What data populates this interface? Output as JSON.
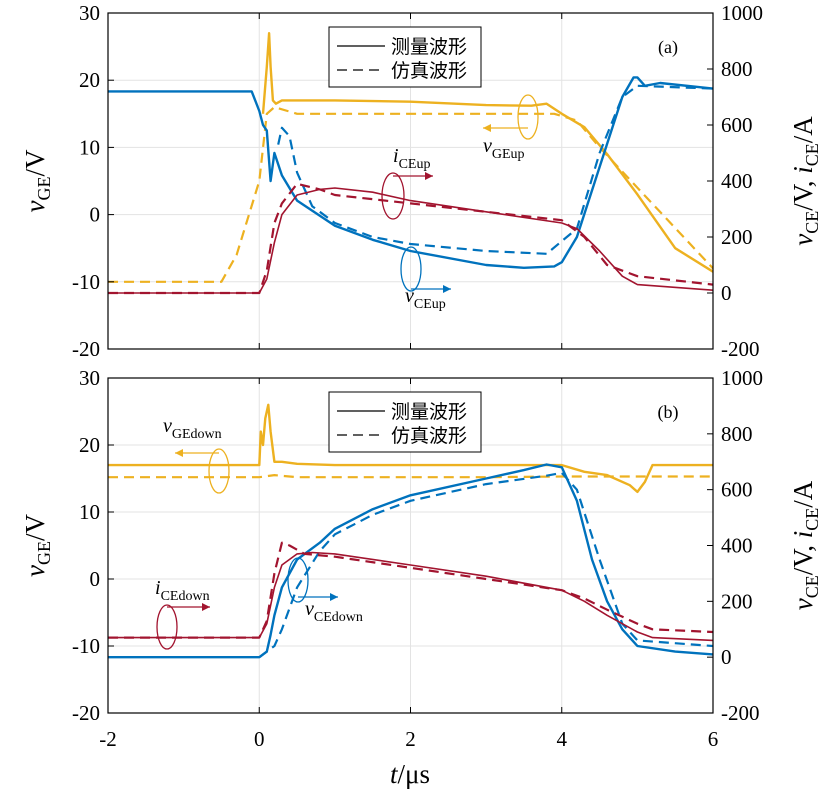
{
  "chart_data": [
    {
      "type": "line",
      "panel_label": "(a)",
      "xlim": [
        -2,
        6
      ],
      "ylim_left": [
        -20,
        30
      ],
      "ylim_right": [
        -200,
        1000
      ],
      "grid": true,
      "legend_position": "top-center",
      "legend": [
        {
          "label": "测量波形",
          "style": "solid"
        },
        {
          "label": "仿真波形",
          "style": "dashed"
        }
      ],
      "series": [
        {
          "name": "vGEup",
          "axis": "left",
          "color": "#EDB120",
          "style": "solid",
          "x": [
            -2,
            0,
            0.05,
            0.1,
            0.13,
            0.15,
            0.18,
            0.22,
            0.3,
            0.5,
            1,
            2,
            3,
            3.6,
            3.8,
            4,
            4.3,
            4.6,
            5,
            5.5,
            6
          ],
          "y": [
            null,
            null,
            15,
            22,
            27,
            22,
            17,
            16.5,
            17,
            17,
            17,
            16.8,
            16.3,
            16.2,
            16.5,
            15,
            13,
            9,
            3,
            -5,
            -8.5
          ]
        },
        {
          "name": "vGEup",
          "axis": "left",
          "color": "#EDB120",
          "style": "dashed",
          "x": [
            -2,
            -0.5,
            -0.3,
            0,
            0.1,
            0.2,
            0.5,
            1,
            2,
            3,
            3.9,
            4.2,
            4.5,
            5,
            5.5,
            6
          ],
          "y": [
            -10,
            -10,
            -6,
            5,
            15,
            16,
            15,
            15,
            15,
            15,
            15,
            14,
            10,
            4,
            -2,
            -8
          ]
        },
        {
          "name": "vCEup",
          "axis": "right",
          "color": "#0072BD",
          "style": "solid",
          "x": [
            -2,
            -0.1,
            0,
            0.05,
            0.1,
            0.15,
            0.2,
            0.3,
            0.5,
            1,
            1.5,
            2,
            3,
            3.5,
            3.9,
            4,
            4.2,
            4.5,
            4.8,
            4.95,
            5,
            5.1,
            5.3,
            6
          ],
          "y": [
            720,
            720,
            650,
            600,
            580,
            400,
            500,
            420,
            330,
            240,
            190,
            150,
            100,
            90,
            95,
            110,
            200,
            450,
            700,
            770,
            770,
            740,
            750,
            730
          ]
        },
        {
          "name": "vCEup",
          "axis": "right",
          "color": "#0072BD",
          "style": "dashed",
          "x": [
            0.25,
            0.3,
            0.4,
            0.5,
            0.7,
            1,
            1.5,
            2,
            3,
            3.8,
            4.2,
            4.5,
            4.8,
            5,
            6
          ],
          "y": [
            530,
            590,
            560,
            430,
            310,
            250,
            200,
            175,
            150,
            140,
            230,
            500,
            700,
            740,
            730
          ]
        },
        {
          "name": "iCEup",
          "axis": "right",
          "color": "#A2142F",
          "style": "solid",
          "x": [
            -2,
            0,
            0.1,
            0.2,
            0.3,
            0.5,
            0.8,
            1,
            1.5,
            2,
            3,
            4,
            4.2,
            4.5,
            4.8,
            5,
            6
          ],
          "y": [
            0,
            0,
            50,
            180,
            280,
            350,
            370,
            375,
            360,
            330,
            290,
            250,
            230,
            150,
            60,
            30,
            10
          ]
        },
        {
          "name": "iCEup",
          "axis": "right",
          "color": "#A2142F",
          "style": "dashed",
          "x": [
            -2,
            0,
            0.1,
            0.2,
            0.3,
            0.5,
            0.8,
            1,
            2,
            3,
            4,
            4.3,
            4.6,
            5,
            6
          ],
          "y": [
            0,
            0,
            80,
            250,
            320,
            390,
            370,
            350,
            320,
            290,
            260,
            200,
            100,
            60,
            30
          ]
        }
      ],
      "annotations": [
        {
          "text": "v",
          "sub": "GEup",
          "color": "#EDB120"
        },
        {
          "text": "i",
          "sub": "CEup",
          "color": "#A2142F"
        },
        {
          "text": "v",
          "sub": "CEup",
          "color": "#0072BD"
        }
      ],
      "ylabel_left": "v_GE/V",
      "ylabel_right": "v_CE/V, i_CE/A"
    },
    {
      "type": "line",
      "panel_label": "(b)",
      "xlim": [
        -2,
        6
      ],
      "ylim_left": [
        -20,
        30
      ],
      "ylim_right": [
        -200,
        1000
      ],
      "grid": true,
      "legend_position": "top-center",
      "legend": [
        {
          "label": "测量波形",
          "style": "solid"
        },
        {
          "label": "仿真波形",
          "style": "dashed"
        }
      ],
      "series": [
        {
          "name": "vGEdown",
          "axis": "left",
          "color": "#EDB120",
          "style": "solid",
          "x": [
            -2,
            0,
            0.02,
            0.05,
            0.08,
            0.12,
            0.15,
            0.2,
            0.3,
            0.5,
            1,
            3,
            4,
            4.3,
            4.6,
            4.9,
            5,
            5.1,
            5.2,
            5.4,
            6
          ],
          "y": [
            17,
            17,
            22,
            20,
            24,
            26,
            22,
            17.5,
            17.5,
            17.2,
            17,
            17,
            17,
            16,
            15.5,
            14,
            13,
            14.5,
            17,
            17,
            17
          ]
        },
        {
          "name": "vGEdown",
          "axis": "left",
          "color": "#EDB120",
          "style": "dashed",
          "x": [
            -2,
            0,
            0.2,
            0.5,
            1,
            3,
            4,
            6
          ],
          "y": [
            15.2,
            15.2,
            15.5,
            15.2,
            15.2,
            15.2,
            15.3,
            15.3
          ]
        },
        {
          "name": "vCEdown",
          "axis": "right",
          "color": "#0072BD",
          "style": "solid",
          "x": [
            -2,
            0,
            0.1,
            0.15,
            0.2,
            0.3,
            0.5,
            0.8,
            1,
            1.5,
            2,
            3,
            3.5,
            3.8,
            4,
            4.2,
            4.4,
            4.6,
            4.8,
            5,
            5.5,
            6
          ],
          "y": [
            0,
            0,
            20,
            80,
            150,
            250,
            350,
            410,
            460,
            530,
            580,
            640,
            670,
            690,
            680,
            560,
            350,
            200,
            100,
            40,
            20,
            10
          ]
        },
        {
          "name": "vCEdown",
          "axis": "right",
          "color": "#0072BD",
          "style": "dashed",
          "x": [
            0,
            0.2,
            0.3,
            0.5,
            0.8,
            1,
            1.5,
            2,
            3,
            3.8,
            4,
            4.2,
            4.5,
            4.8,
            5,
            6
          ],
          "y": [
            0,
            40,
            100,
            250,
            380,
            440,
            510,
            560,
            620,
            650,
            660,
            600,
            350,
            120,
            60,
            40
          ]
        },
        {
          "name": "iCEdown",
          "axis": "right",
          "color": "#A2142F",
          "style": "solid",
          "x": [
            -2,
            0,
            0.1,
            0.2,
            0.3,
            0.5,
            0.7,
            1,
            2,
            3,
            4,
            4.3,
            4.6,
            5,
            5.2,
            6
          ],
          "y": [
            70,
            70,
            120,
            250,
            330,
            370,
            375,
            370,
            330,
            290,
            240,
            200,
            150,
            90,
            70,
            60
          ]
        },
        {
          "name": "iCEdown",
          "axis": "right",
          "color": "#A2142F",
          "style": "dashed",
          "x": [
            -2,
            0,
            0.1,
            0.2,
            0.3,
            0.4,
            0.6,
            1,
            2,
            3,
            4,
            4.3,
            4.6,
            5,
            5.2,
            6
          ],
          "y": [
            70,
            70,
            130,
            300,
            410,
            400,
            370,
            360,
            320,
            280,
            240,
            210,
            170,
            120,
            100,
            90
          ]
        }
      ],
      "annotations": [
        {
          "text": "v",
          "sub": "GEdown",
          "color": "#EDB120"
        },
        {
          "text": "i",
          "sub": "CEdown",
          "color": "#A2142F"
        },
        {
          "text": "v",
          "sub": "CEdown",
          "color": "#0072BD"
        }
      ],
      "xlabel": "t/μs",
      "ylabel_left": "v_GE/V",
      "ylabel_right": "v_CE/V, i_CE/A"
    }
  ],
  "axes_text": {
    "left_ticks": [
      "30",
      "20",
      "10",
      "0",
      "-10",
      "-20"
    ],
    "right_ticks": [
      "1000",
      "800",
      "600",
      "400",
      "200",
      "0",
      "-200"
    ],
    "x_ticks": [
      "-2",
      "0",
      "2",
      "4",
      "6"
    ],
    "xlabel_t": "t",
    "xlabel_unit": "/μs",
    "ylabel_left_v": "v",
    "ylabel_left_sub": "GE",
    "ylabel_left_unit": "/V",
    "ylabel_right_v1": "v",
    "ylabel_right_sub1": "CE",
    "ylabel_right_mid": "/V, ",
    "ylabel_right_i": "i",
    "ylabel_right_sub2": "CE",
    "ylabel_right_unit": "/A"
  },
  "colors": {
    "vge": "#EDB120",
    "vce": "#0072BD",
    "ice": "#A2142F",
    "grid": "#e3e3e3"
  }
}
